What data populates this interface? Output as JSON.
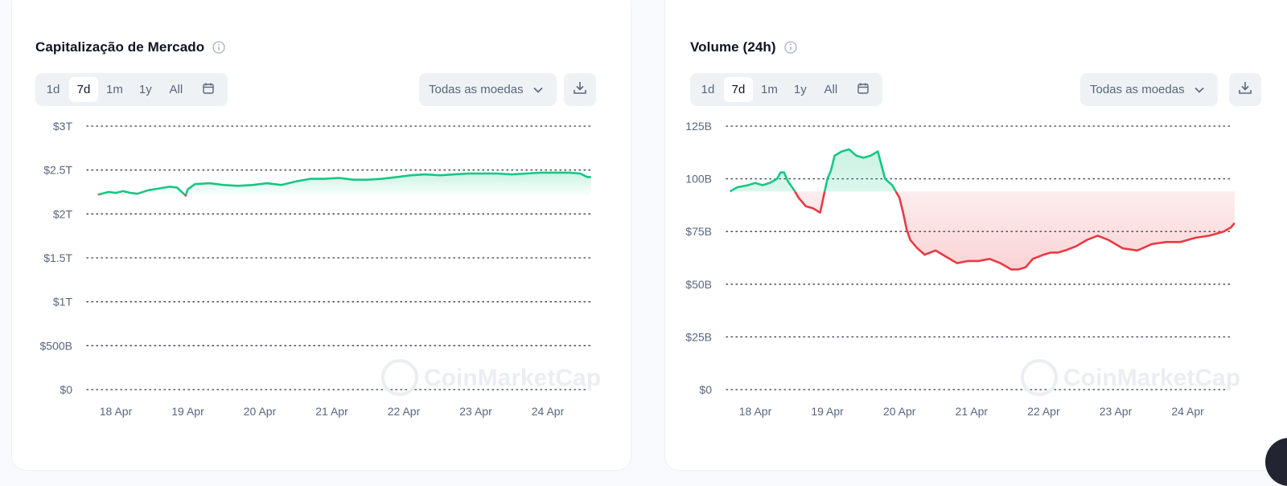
{
  "cards": [
    {
      "title": "Capitalização de Mercado",
      "info_icon": "info-icon",
      "ranges": [
        "1d",
        "7d",
        "1m",
        "1y",
        "All"
      ],
      "active_range": "7d",
      "calendar_icon": "calendar-icon",
      "currency_select": "Todas as moedas",
      "dropdown_icon": "chevron-down-icon",
      "download_icon": "download-icon",
      "watermark": "CoinMarketCap"
    },
    {
      "title": "Volume (24h)",
      "info_icon": "info-icon",
      "ranges": [
        "1d",
        "7d",
        "1m",
        "1y",
        "All"
      ],
      "active_range": "7d",
      "calendar_icon": "calendar-icon",
      "currency_select": "Todas as moedas",
      "dropdown_icon": "chevron-down-icon",
      "download_icon": "download-icon",
      "watermark": "CoinMarketCap"
    }
  ],
  "colors": {
    "up": "#16c784",
    "down": "#ea3943",
    "grid": "#0d1421",
    "tick": "#58667e"
  },
  "chart_data": [
    {
      "type": "area",
      "title": "Capitalização de Mercado",
      "y_ticks": [
        "$0",
        "$500B",
        "$1T",
        "$1.5T",
        "$2T",
        "$2.5T",
        "$3T"
      ],
      "y_tick_values": [
        0,
        0.5,
        1,
        1.5,
        2,
        2.5,
        3
      ],
      "ylim": [
        0,
        3
      ],
      "y_unit": "trillion USD",
      "x_ticks": [
        "18 Apr",
        "19 Apr",
        "20 Apr",
        "21 Apr",
        "22 Apr",
        "23 Apr",
        "24 Apr"
      ],
      "xlim": [
        -0.25,
        6.6
      ],
      "baseline": 2.22,
      "grid": "horizontal dotted",
      "series": [
        {
          "x": [
            -0.25,
            -0.1,
            0.0,
            0.1,
            0.2,
            0.3,
            0.45,
            0.6,
            0.75,
            0.85,
            0.97,
            1.0,
            1.1,
            1.3,
            1.5,
            1.7,
            1.9,
            2.1,
            2.3,
            2.5,
            2.7,
            2.9,
            3.1,
            3.3,
            3.5,
            3.7,
            3.9,
            4.1,
            4.3,
            4.5,
            4.7,
            4.9,
            5.1,
            5.3,
            5.5,
            5.7,
            5.9,
            6.1,
            6.3,
            6.45,
            6.55,
            6.6
          ],
          "y": [
            2.22,
            2.25,
            2.24,
            2.26,
            2.24,
            2.23,
            2.27,
            2.29,
            2.31,
            2.3,
            2.21,
            2.28,
            2.34,
            2.35,
            2.33,
            2.32,
            2.33,
            2.35,
            2.33,
            2.37,
            2.4,
            2.4,
            2.41,
            2.39,
            2.39,
            2.4,
            2.42,
            2.44,
            2.45,
            2.44,
            2.45,
            2.46,
            2.46,
            2.46,
            2.45,
            2.46,
            2.47,
            2.47,
            2.47,
            2.46,
            2.42,
            2.42
          ]
        }
      ]
    },
    {
      "type": "area",
      "title": "Volume (24h)",
      "y_ticks": [
        "$0",
        "$25B",
        "$50B",
        "$75B",
        "$100B",
        "$125B"
      ],
      "y_tick_values": [
        0,
        25,
        50,
        75,
        100,
        125
      ],
      "ylim": [
        0,
        125
      ],
      "y_unit": "billion USD",
      "x_ticks": [
        "18 Apr",
        "19 Apr",
        "20 Apr",
        "21 Apr",
        "22 Apr",
        "23 Apr",
        "24 Apr"
      ],
      "xlim": [
        -0.35,
        6.65
      ],
      "baseline": 94,
      "grid": "horizontal dotted",
      "series": [
        {
          "x": [
            -0.35,
            -0.25,
            -0.1,
            0.0,
            0.1,
            0.2,
            0.3,
            0.35,
            0.4,
            0.45,
            0.55,
            0.6,
            0.7,
            0.8,
            0.9,
            0.95,
            1.0,
            1.05,
            1.1,
            1.2,
            1.3,
            1.4,
            1.5,
            1.6,
            1.7,
            1.8,
            1.9,
            2.0,
            2.05,
            2.1,
            2.15,
            2.25,
            2.35,
            2.5,
            2.65,
            2.8,
            2.95,
            3.1,
            3.25,
            3.4,
            3.55,
            3.65,
            3.75,
            3.85,
            4.0,
            4.1,
            4.2,
            4.3,
            4.45,
            4.6,
            4.75,
            4.9,
            5.1,
            5.3,
            5.5,
            5.7,
            5.9,
            6.1,
            6.3,
            6.5,
            6.6,
            6.65
          ],
          "y": [
            94,
            96,
            97,
            98,
            97,
            98,
            100,
            103,
            103,
            99,
            94,
            91,
            87,
            86,
            84,
            92,
            100,
            104,
            111,
            113,
            114,
            111,
            110,
            111,
            113,
            100,
            97,
            91,
            84,
            76,
            71,
            67,
            64,
            66,
            63,
            60,
            61,
            61,
            62,
            60,
            57,
            57,
            58,
            62,
            64,
            65,
            65,
            66,
            68,
            71,
            73,
            71,
            67,
            66,
            69,
            70,
            70,
            72,
            73,
            75,
            77,
            79
          ]
        }
      ]
    }
  ]
}
